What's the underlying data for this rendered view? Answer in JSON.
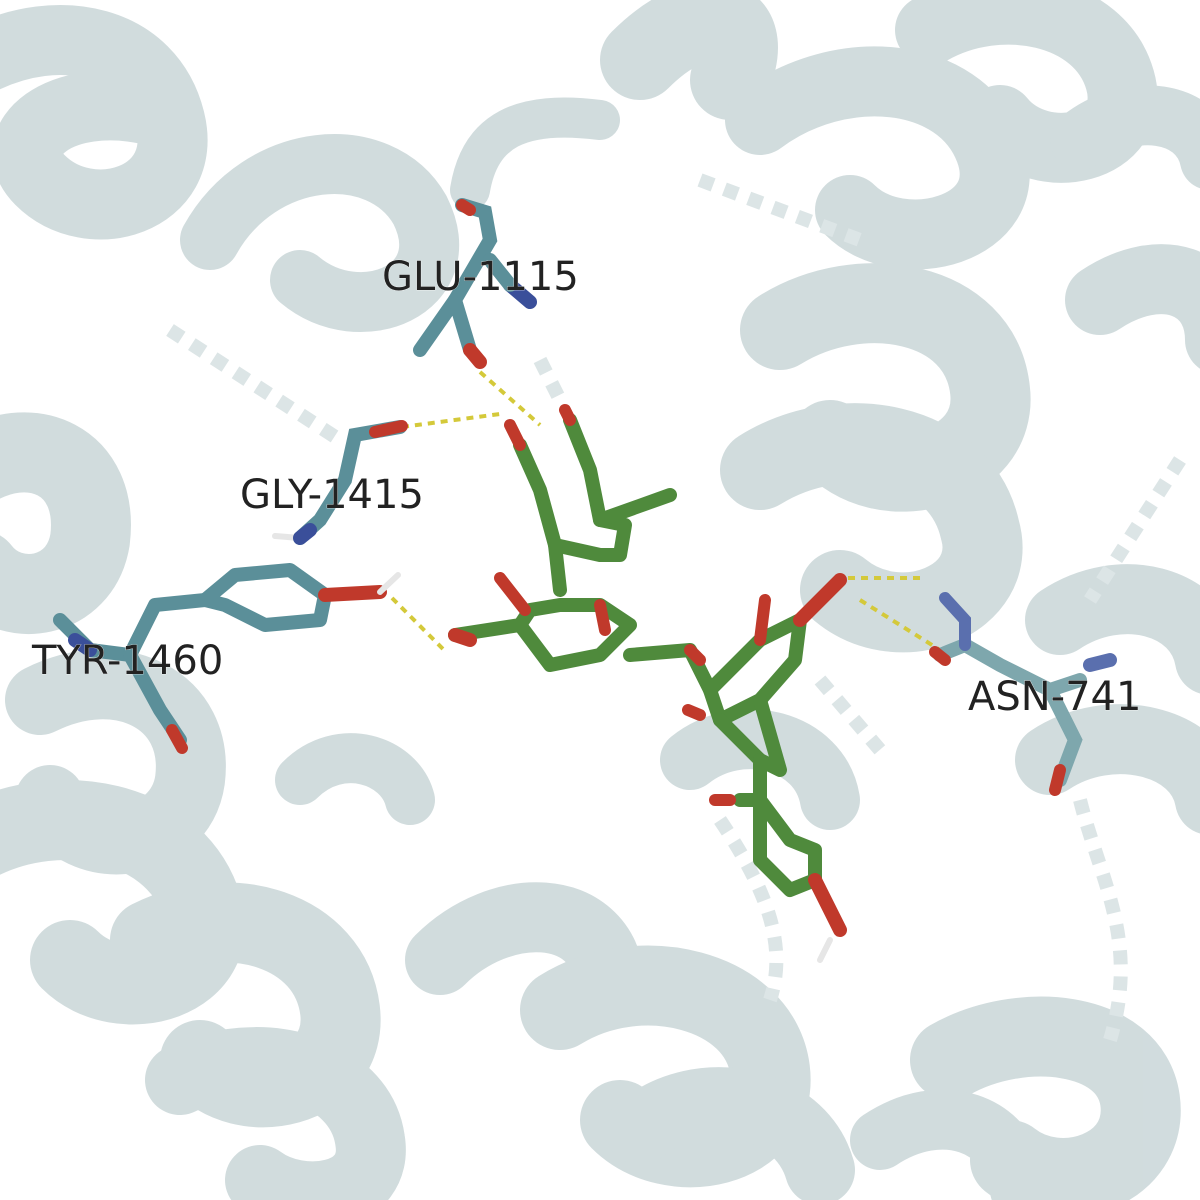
{
  "scene": {
    "residues": [
      {
        "id": "glu",
        "label": "GLU-1115"
      },
      {
        "id": "gly",
        "label": "GLY-1415"
      },
      {
        "id": "tyr",
        "label": "TYR-1460"
      },
      {
        "id": "asn",
        "label": "ASN-741"
      }
    ],
    "colors": {
      "background": "#ffffff",
      "protein_cartoon": "#c9d6d8",
      "residue_carbon": "#5b8f99",
      "ligand_carbon": "#4f8a3c",
      "oxygen": "#c0392b",
      "nitrogen": "#3a4f9a",
      "hydrogen": "#e6e6e6",
      "hbond": "#d4c93a"
    }
  }
}
